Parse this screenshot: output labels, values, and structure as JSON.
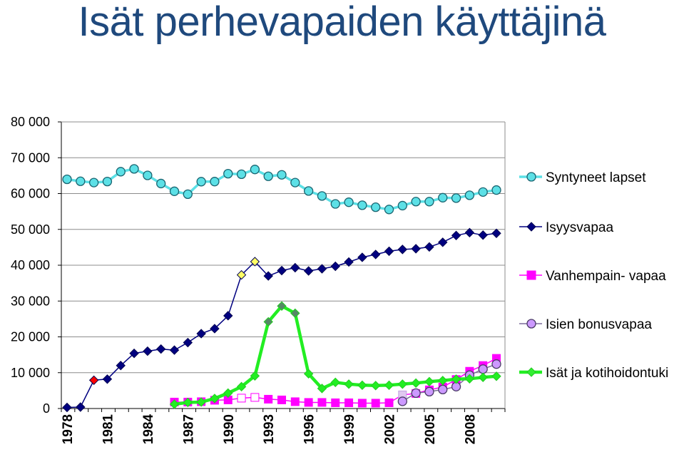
{
  "title": "Isät perhevapaiden käyttäjinä",
  "chart_data": {
    "type": "line",
    "title": "Isät perhevapaiden käyttäjinä",
    "xlabel": "",
    "ylabel": "",
    "ylim": [
      0,
      80000
    ],
    "yticks": [
      0,
      10000,
      20000,
      30000,
      40000,
      50000,
      60000,
      70000,
      80000
    ],
    "ytick_labels": [
      "0",
      "10 000",
      "20 000",
      "30 000",
      "40 000",
      "50 000",
      "60 000",
      "70 000",
      "80 000"
    ],
    "x": [
      1978,
      1979,
      1980,
      1981,
      1982,
      1983,
      1984,
      1985,
      1986,
      1987,
      1988,
      1989,
      1990,
      1991,
      1992,
      1993,
      1994,
      1995,
      1996,
      1997,
      1998,
      1999,
      2000,
      2001,
      2002,
      2003,
      2004,
      2005,
      2006,
      2007,
      2008,
      2009,
      2010
    ],
    "xtick_values": [
      1978,
      1981,
      1984,
      1987,
      1990,
      1993,
      1996,
      1999,
      2002,
      2005,
      2008
    ],
    "xtick_labels": [
      "1978",
      "1981",
      "1984",
      "1987",
      "1990",
      "1993",
      "1996",
      "1999",
      "2002",
      "2005",
      "2008"
    ],
    "grid": "horizontal",
    "legend_position": "right",
    "series": [
      {
        "name": "Syntyneet lapset",
        "key": "births",
        "color": "#5ce0e6",
        "marker": "circle",
        "values": [
          63983,
          63428,
          63064,
          63357,
          66106,
          66892,
          65076,
          62796,
          60632,
          59827,
          63316,
          63348,
          65549,
          65395,
          66731,
          64826,
          65231,
          63067,
          60723,
          59329,
          57108,
          57574,
          56742,
          56189,
          55555,
          56630,
          57758,
          57745,
          58840,
          58729,
          59530,
          60430,
          60980
        ]
      },
      {
        "name": "Isyysvapaa",
        "key": "paternity",
        "color": "#000080",
        "marker": "diamond",
        "values": [
          300,
          400,
          7900,
          8200,
          12000,
          15400,
          16000,
          16600,
          16300,
          18400,
          20900,
          22300,
          25900,
          37300,
          41000,
          37000,
          38500,
          39300,
          38400,
          39000,
          39700,
          40900,
          42200,
          43000,
          43900,
          44400,
          44600,
          45100,
          46400,
          48300,
          49100,
          48400,
          48900
        ],
        "highlight": {
          "1980": "#ff0000",
          "1991": "#ffff66",
          "1992": "#ffff66"
        }
      },
      {
        "name": "Vanhempain- vapaa",
        "key": "parental",
        "color": "#ff00ff",
        "marker": "square",
        "values": [
          null,
          null,
          null,
          null,
          null,
          null,
          null,
          null,
          1800,
          1800,
          1900,
          2300,
          2400,
          2900,
          3100,
          2600,
          2400,
          1900,
          1700,
          1700,
          1600,
          1600,
          1500,
          1500,
          1600,
          3800,
          4200,
          5200,
          6000,
          8100,
          10400,
          12000,
          14000
        ],
        "hollow_years": [
          1991,
          1992
        ],
        "light_years": [
          2003
        ]
      },
      {
        "name": "Isien bonusvapaa",
        "key": "bonus",
        "color": "#cc99ff",
        "marker": "circle",
        "values": [
          null,
          null,
          null,
          null,
          null,
          null,
          null,
          null,
          null,
          null,
          null,
          null,
          null,
          null,
          null,
          null,
          null,
          null,
          null,
          null,
          null,
          null,
          null,
          null,
          null,
          2000,
          4300,
          4700,
          5300,
          6100,
          9300,
          11000,
          12400
        ]
      },
      {
        "name": "Isät ja kotihoidontuki",
        "key": "homecare",
        "color": "#33ee33",
        "marker": "diamond",
        "values": [
          null,
          null,
          null,
          null,
          null,
          null,
          null,
          null,
          1200,
          1700,
          1800,
          2800,
          4300,
          6100,
          9100,
          24200,
          28600,
          26600,
          9700,
          5600,
          7300,
          6800,
          6500,
          6400,
          6500,
          6800,
          7100,
          7500,
          7800,
          8200,
          8300,
          8700,
          9000
        ],
        "highlight": {
          "1993": "#558866",
          "1994": "#558866",
          "1995": "#558866"
        }
      }
    ]
  }
}
